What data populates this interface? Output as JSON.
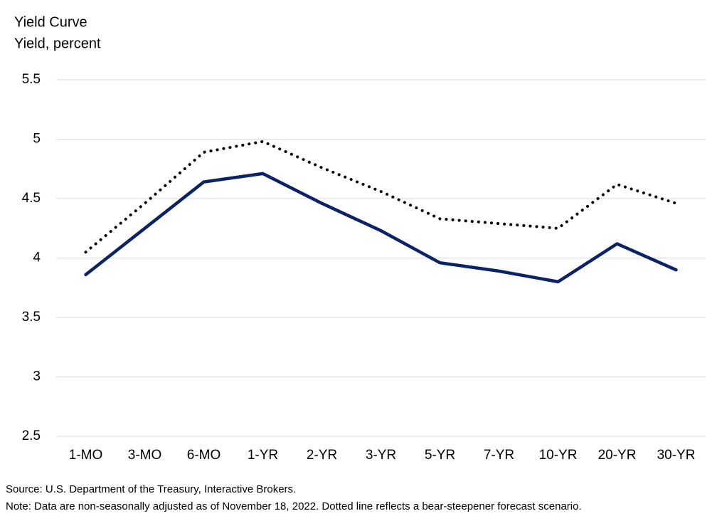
{
  "chart_data": {
    "type": "line",
    "title": "Yield Curve",
    "y_label": "Yield, percent",
    "categories": [
      "1-MO",
      "3-MO",
      "6-MO",
      "1-YR",
      "2-YR",
      "3-YR",
      "5-YR",
      "7-YR",
      "10-YR",
      "20-YR",
      "30-YR"
    ],
    "series": [
      {
        "color": "#0b2265",
        "style": "solid",
        "values": [
          3.86,
          4.25,
          4.64,
          4.71,
          4.46,
          4.23,
          3.96,
          3.89,
          3.8,
          4.12,
          3.9
        ]
      },
      {
        "color": "#000000",
        "style": "dotted",
        "values": [
          4.05,
          4.46,
          4.89,
          4.98,
          4.76,
          4.56,
          4.33,
          4.29,
          4.25,
          4.62,
          4.46
        ]
      }
    ],
    "ylim": [
      2.5,
      5.5
    ],
    "yticks": [
      2.5,
      3,
      3.5,
      4,
      4.5,
      5,
      5.5
    ],
    "grid": true,
    "source": "Source: U.S. Department of the Treasury, Interactive Brokers.",
    "note": "Note: Data are non-seasonally adjusted as of November 18, 2022. Dotted line reflects a bear-steepener forecast scenario."
  }
}
